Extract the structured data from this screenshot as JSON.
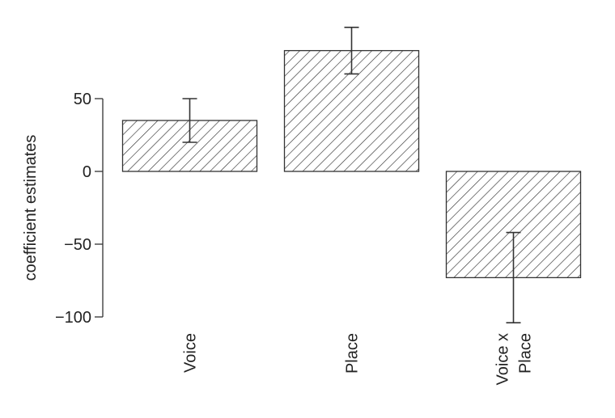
{
  "chart_data": {
    "type": "bar",
    "y_label": "coefficient estimates",
    "categories": [
      "Voice",
      "Place",
      "Voice x\nPlace"
    ],
    "values": [
      35,
      83,
      -73
    ],
    "errors": [
      15,
      16,
      31
    ],
    "color": "#333333",
    "hatch": true,
    "ylim": [
      -100,
      100
    ],
    "yticks": [
      {
        "value": -100,
        "label": "−100"
      },
      {
        "value": -50,
        "label": "−50"
      },
      0,
      50
    ]
  }
}
